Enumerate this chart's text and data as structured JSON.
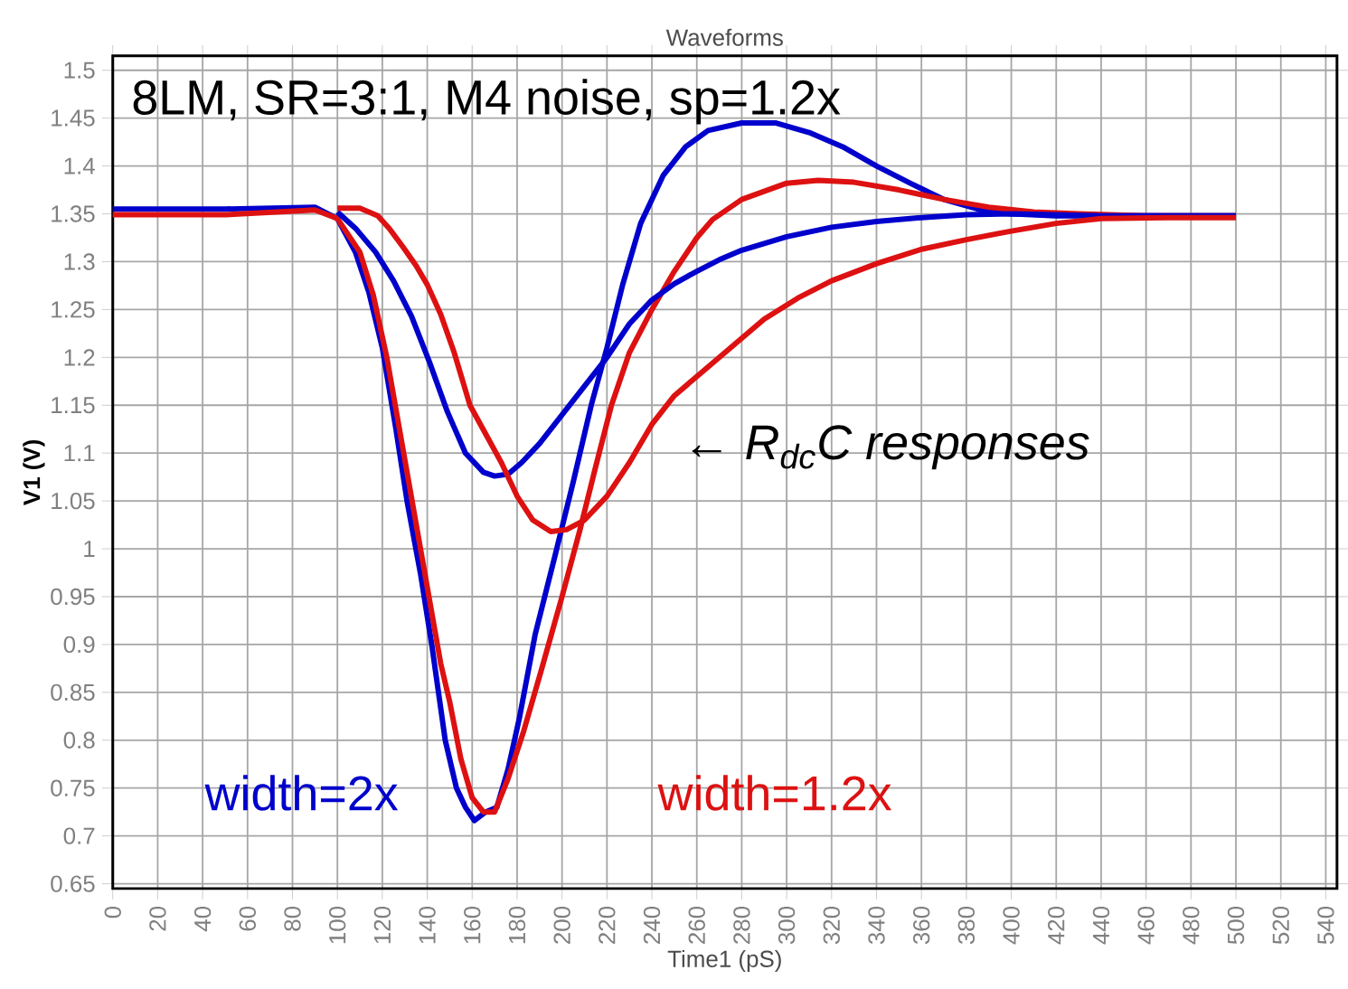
{
  "chart_data": {
    "type": "line",
    "title": "Waveforms",
    "xlabel": "Time1 (pS)",
    "ylabel": "V1 (V)",
    "annotations": [
      "8LM, SR=3:1, M4 noise, sp=1.2x",
      "← *R$_{dc}$C responses*"
    ],
    "xlim": [
      0,
      545
    ],
    "ylim": [
      0.645,
      1.515
    ],
    "xticks": [
      0,
      20,
      40,
      60,
      80,
      100,
      120,
      140,
      160,
      180,
      200,
      220,
      240,
      260,
      280,
      300,
      320,
      340,
      360,
      380,
      400,
      420,
      440,
      460,
      480,
      500,
      520,
      540
    ],
    "yticks": [
      0.65,
      0.7,
      0.75,
      0.8,
      0.85,
      0.9,
      0.95,
      1,
      1.05,
      1.1,
      1.15,
      1.2,
      1.25,
      1.3,
      1.35,
      1.4,
      1.45,
      1.5
    ],
    "grid": true,
    "legend": false,
    "marker": "none",
    "line_style": "solid",
    "series": [
      {
        "name": "width=2x",
        "color": "#0000cc",
        "x": [
          0,
          50,
          90,
          100,
          108,
          114,
          120,
          126,
          131,
          137,
          142,
          148,
          153,
          157,
          161,
          166,
          171,
          176,
          181,
          188,
          197,
          205,
          213,
          220,
          227,
          235,
          245,
          255,
          265,
          280,
          295,
          310,
          325,
          340,
          355,
          370,
          385,
          400,
          420,
          450,
          500
        ],
        "values": [
          1.355,
          1.355,
          1.357,
          1.345,
          1.31,
          1.268,
          1.21,
          1.126,
          1.05,
          0.974,
          0.9,
          0.8,
          0.75,
          0.73,
          0.716,
          0.725,
          0.73,
          0.77,
          0.823,
          0.91,
          0.994,
          1.07,
          1.15,
          1.21,
          1.276,
          1.34,
          1.39,
          1.42,
          1.437,
          1.445,
          1.445,
          1.435,
          1.42,
          1.4,
          1.382,
          1.365,
          1.355,
          1.35,
          1.348,
          1.348,
          1.348
        ]
      },
      {
        "name": "width=1.2x",
        "color": "#dd1111",
        "x": [
          0,
          50,
          90,
          100,
          110,
          116,
          122,
          128,
          134,
          140,
          146,
          150,
          155,
          160,
          165,
          170,
          176,
          183,
          191,
          200,
          208,
          215,
          222,
          230,
          240,
          250,
          260,
          267,
          280,
          300,
          314,
          330,
          350,
          370,
          390,
          410,
          430,
          460,
          500
        ],
        "values": [
          1.349,
          1.349,
          1.354,
          1.345,
          1.31,
          1.265,
          1.2,
          1.12,
          1.04,
          0.96,
          0.88,
          0.84,
          0.78,
          0.74,
          0.725,
          0.725,
          0.76,
          0.81,
          0.875,
          0.95,
          1.02,
          1.086,
          1.15,
          1.205,
          1.25,
          1.29,
          1.325,
          1.344,
          1.365,
          1.382,
          1.385,
          1.383,
          1.375,
          1.365,
          1.357,
          1.352,
          1.35,
          1.348,
          1.348
        ]
      },
      {
        "color": "#0000cc",
        "x": [
          100,
          108,
          117,
          125,
          133,
          141,
          149,
          157,
          165,
          170,
          176,
          182,
          190,
          200,
          210,
          220,
          230,
          240,
          250,
          260,
          270,
          280,
          300,
          320,
          340,
          360,
          380,
          400,
          440,
          500
        ],
        "values": [
          1.352,
          1.335,
          1.31,
          1.28,
          1.243,
          1.195,
          1.143,
          1.1,
          1.08,
          1.076,
          1.078,
          1.09,
          1.11,
          1.14,
          1.17,
          1.2,
          1.235,
          1.26,
          1.277,
          1.29,
          1.302,
          1.312,
          1.326,
          1.336,
          1.342,
          1.346,
          1.349,
          1.35,
          1.348,
          1.348
        ]
      },
      {
        "color": "#dd1111",
        "x": [
          100,
          110,
          118,
          123,
          129,
          135,
          140,
          146,
          152,
          159,
          166,
          173,
          180,
          187,
          195,
          202,
          210,
          220,
          230,
          240,
          250,
          262,
          275,
          290,
          305,
          320,
          340,
          360,
          380,
          400,
          420,
          440,
          470,
          500
        ],
        "values": [
          1.356,
          1.356,
          1.348,
          1.335,
          1.316,
          1.296,
          1.276,
          1.245,
          1.205,
          1.15,
          1.12,
          1.09,
          1.055,
          1.03,
          1.018,
          1.02,
          1.03,
          1.055,
          1.09,
          1.13,
          1.16,
          1.184,
          1.21,
          1.24,
          1.262,
          1.28,
          1.298,
          1.313,
          1.323,
          1.332,
          1.34,
          1.345,
          1.346,
          1.346
        ]
      }
    ]
  }
}
